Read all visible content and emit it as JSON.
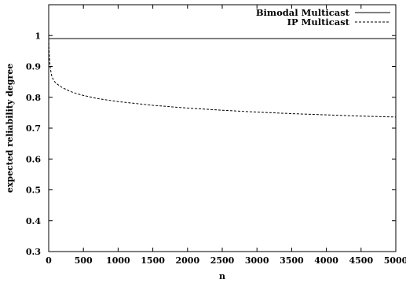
{
  "chart_data": {
    "type": "line",
    "xlabel": "n",
    "ylabel": "expected reliability degree",
    "xlim": [
      0,
      5000
    ],
    "ylim": [
      0.3,
      1.1
    ],
    "xticks": [
      0,
      500,
      1000,
      1500,
      2000,
      2500,
      3000,
      3500,
      4000,
      4500,
      5000
    ],
    "yticks": [
      0.3,
      0.4,
      0.5,
      0.6,
      0.7,
      0.8,
      0.9,
      1
    ],
    "grid": false,
    "legend": "top-right",
    "series": [
      {
        "name": "Bimodal Multicast",
        "style": "solid",
        "color": "#000000",
        "x": [
          0,
          5000
        ],
        "y": [
          0.99,
          0.99
        ]
      },
      {
        "name": "IP Multicast",
        "style": "dashed",
        "color": "#000000",
        "x": [
          1,
          5,
          10,
          20,
          40,
          60,
          80,
          100,
          150,
          200,
          300,
          400,
          500,
          700,
          1000,
          1500,
          2000,
          2500,
          3000,
          3500,
          4000,
          4500,
          5000
        ],
        "y": [
          0.99,
          0.955,
          0.93,
          0.9,
          0.872,
          0.86,
          0.852,
          0.847,
          0.838,
          0.831,
          0.82,
          0.812,
          0.806,
          0.796,
          0.786,
          0.774,
          0.765,
          0.758,
          0.752,
          0.747,
          0.743,
          0.739,
          0.736
        ]
      }
    ]
  }
}
